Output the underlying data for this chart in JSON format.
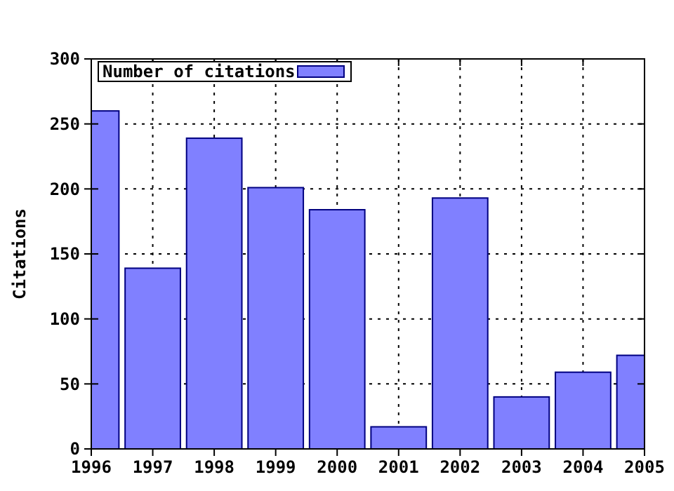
{
  "chart_data": {
    "type": "bar",
    "ylabel": "Citations",
    "x": [
      1996,
      1997,
      1998,
      1999,
      2000,
      2001,
      2002,
      2003,
      2004,
      2005
    ],
    "series": [
      {
        "name": "Number of citations",
        "color": "#8080ff",
        "values": [
          260,
          139,
          239,
          201,
          184,
          17,
          193,
          40,
          59,
          72
        ]
      }
    ],
    "xlim": [
      1996,
      2005
    ],
    "xticks": [
      1996,
      1997,
      1998,
      1999,
      2000,
      2001,
      2002,
      2003,
      2004,
      2005
    ],
    "ylim": [
      0,
      300
    ],
    "yticks": [
      0,
      50,
      100,
      150,
      200,
      250,
      300
    ],
    "grid": true,
    "legend": "top left"
  }
}
